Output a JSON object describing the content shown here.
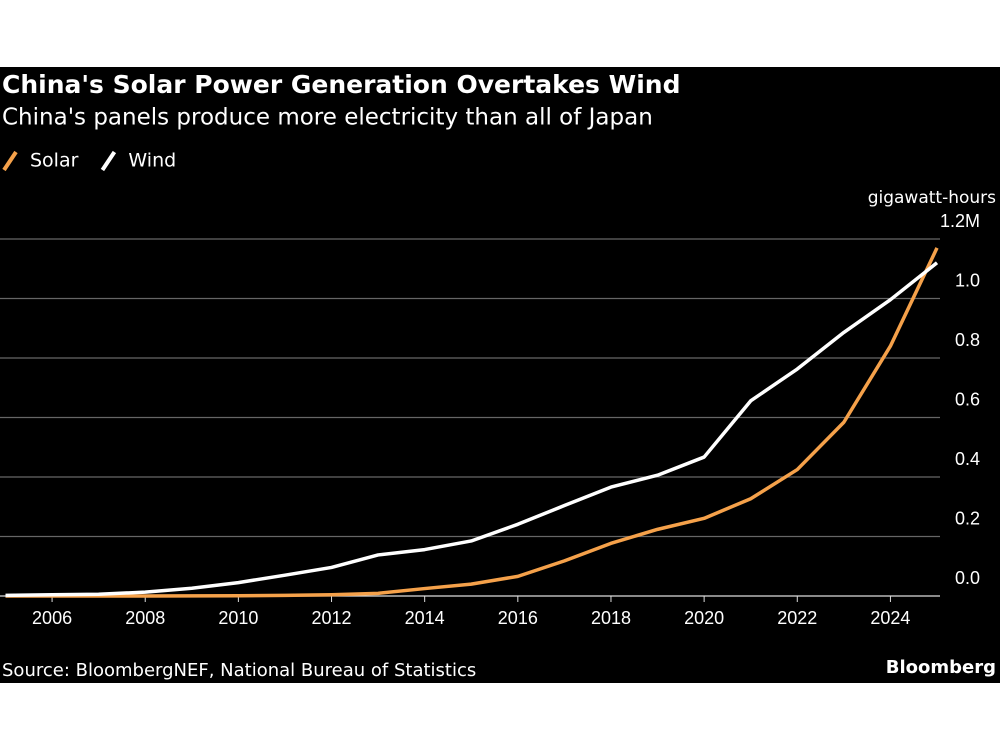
{
  "chart_data": {
    "type": "line",
    "title": "China's Solar Power Generation Overtakes Wind",
    "subtitle": "China's panels produce more electricity than all of Japan",
    "y_label": "gigawatt-hours",
    "source": "Source: BloombergNEF, National Bureau of Statistics",
    "brand": "Bloomberg",
    "x": [
      2005,
      2006,
      2007,
      2008,
      2009,
      2010,
      2011,
      2012,
      2013,
      2014,
      2015,
      2016,
      2017,
      2018,
      2019,
      2020,
      2021,
      2022,
      2023,
      2024,
      2025
    ],
    "series": [
      {
        "name": "Solar",
        "color": "#f5a14a",
        "values": [
          0,
          0,
          0,
          0,
          0.0003,
          0.001,
          0.002,
          0.004,
          0.009,
          0.025,
          0.04,
          0.066,
          0.118,
          0.177,
          0.224,
          0.261,
          0.327,
          0.425,
          0.584,
          0.84,
          1.17
        ]
      },
      {
        "name": "Wind",
        "color": "#ffffff",
        "values": [
          0.002,
          0.004,
          0.006,
          0.013,
          0.026,
          0.045,
          0.07,
          0.096,
          0.138,
          0.156,
          0.185,
          0.241,
          0.304,
          0.366,
          0.406,
          0.467,
          0.656,
          0.763,
          0.886,
          0.996,
          1.12
        ]
      }
    ],
    "xlim": [
      2005,
      2025
    ],
    "xticks": [
      2006,
      2008,
      2010,
      2012,
      2014,
      2016,
      2018,
      2020,
      2022,
      2024
    ],
    "ylim": [
      0,
      1.2
    ],
    "yticks": [
      {
        "value": 0,
        "label": "0.0"
      },
      0.2,
      0.4,
      0.6,
      0.8,
      {
        "value": 1,
        "label": "1.0"
      },
      {
        "value": 1.2,
        "label": "1.2M"
      }
    ],
    "grid": true
  }
}
